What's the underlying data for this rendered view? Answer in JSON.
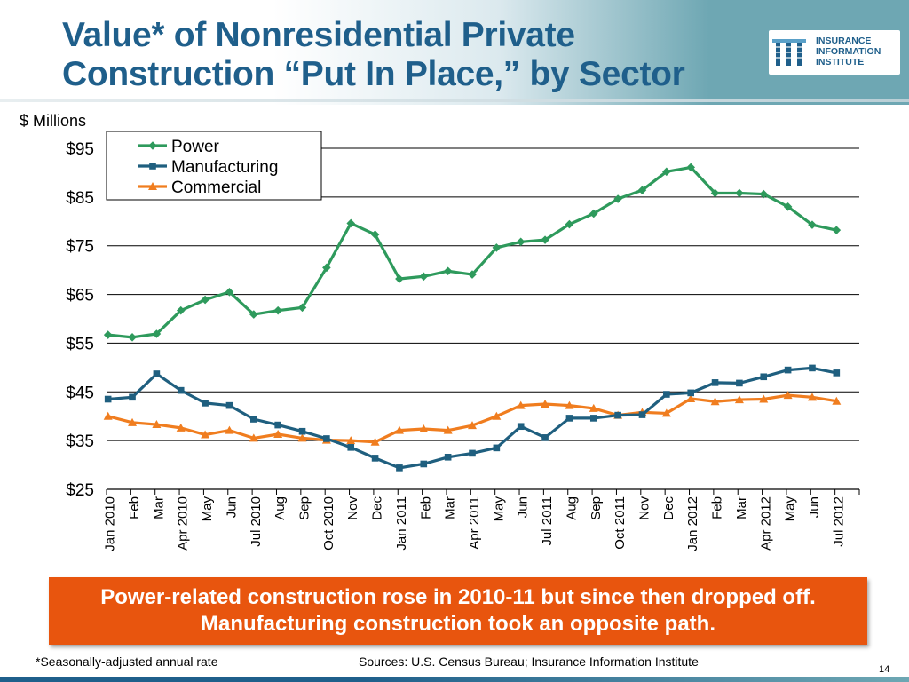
{
  "slide": {
    "title": "Value* of Nonresidential Private Construction “Put In Place,” by Sector",
    "callout": "Power-related construction rose in 2010-11 but since then dropped off. Manufacturing construction took an opposite path.",
    "footnote": "*Seasonally-adjusted annual rate",
    "sources": "Sources: U.S. Census Bureau; Insurance Information Institute",
    "page_number": "14"
  },
  "logo": {
    "lines": [
      "INSURANCE",
      "INFORMATION",
      "INSTITUTE"
    ],
    "color": "#1f5f8b"
  },
  "chart_data": {
    "type": "line",
    "ylabel": "$ Millions",
    "ylim": [
      25,
      95
    ],
    "yticks": [
      "$25",
      "$35",
      "$45",
      "$55",
      "$65",
      "$75",
      "$85",
      "$95"
    ],
    "grid": true,
    "legend_position": "top-left",
    "categories": [
      "Jan 2010",
      "Feb",
      "Mar",
      "Apr 2010",
      "May",
      "Jun",
      "Jul 2010",
      "Aug",
      "Sep",
      "Oct 2010",
      "Nov",
      "Dec",
      "Jan 2011",
      "Feb",
      "Mar",
      "Apr 2011",
      "May",
      "Jun",
      "Jul 2011",
      "Aug",
      "Sep",
      "Oct 2011",
      "Nov",
      "Dec",
      "Jan 2012",
      "Feb",
      "Mar",
      "Apr 2012",
      "May",
      "Jun",
      "Jul 2012"
    ],
    "series": [
      {
        "name": "Power",
        "color": "#2e9a5c",
        "marker": "diamond",
        "values": [
          56.7,
          56.2,
          56.9,
          61.7,
          63.9,
          65.5,
          60.9,
          61.7,
          62.3,
          70.5,
          79.6,
          77.3,
          68.2,
          68.7,
          69.8,
          69.1,
          74.6,
          75.8,
          76.2,
          79.4,
          81.6,
          84.6,
          86.4,
          90.2,
          91.1,
          85.8,
          85.8,
          85.6,
          83.0,
          79.3,
          78.2
        ]
      },
      {
        "name": "Manufacturing",
        "color": "#1f5f7f",
        "marker": "square",
        "values": [
          43.5,
          43.9,
          48.7,
          45.3,
          42.7,
          42.2,
          39.4,
          38.2,
          36.9,
          35.4,
          33.6,
          31.4,
          29.4,
          30.2,
          31.6,
          32.4,
          33.5,
          37.9,
          35.6,
          39.6,
          39.6,
          40.2,
          40.3,
          44.5,
          44.8,
          46.9,
          46.8,
          48.1,
          49.5,
          49.9,
          48.9
        ]
      },
      {
        "name": "Commercial",
        "color": "#f07d1f",
        "marker": "triangle",
        "values": [
          40.0,
          38.7,
          38.3,
          37.6,
          36.2,
          37.1,
          35.5,
          36.3,
          35.5,
          35.1,
          35.0,
          34.7,
          37.1,
          37.4,
          37.1,
          38.1,
          40.0,
          42.2,
          42.5,
          42.2,
          41.6,
          40.2,
          40.8,
          40.6,
          43.6,
          43.0,
          43.4,
          43.5,
          44.3,
          43.9,
          43.1
        ]
      }
    ]
  }
}
